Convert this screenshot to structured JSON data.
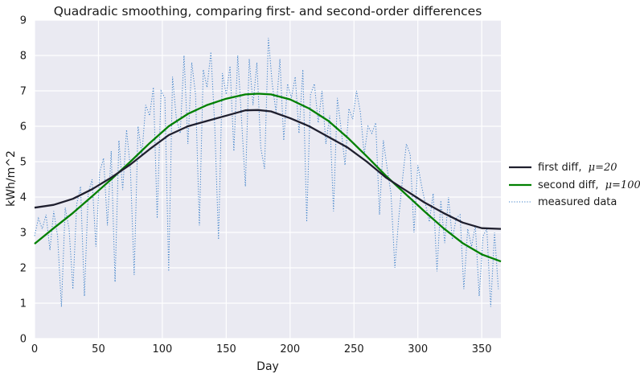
{
  "chart_data": {
    "type": "line",
    "title": "Quadradic smoothing, comparing first- and second-order differences",
    "xlabel": "Day",
    "ylabel": "kWh/m^2",
    "xlim": [
      0,
      365
    ],
    "ylim": [
      0,
      9
    ],
    "x_ticks": [
      0,
      50,
      100,
      150,
      200,
      250,
      300,
      350
    ],
    "y_ticks": [
      0,
      1,
      2,
      3,
      4,
      5,
      6,
      7,
      8,
      9
    ],
    "grid": true,
    "legend_placement": "right, outside",
    "series": [
      {
        "name": "first diff,",
        "name_math": "μ=20",
        "color": "#1f1f2e",
        "style": "solid",
        "x": [
          0,
          15,
          30,
          45,
          60,
          75,
          90,
          105,
          120,
          135,
          150,
          165,
          175,
          185,
          200,
          215,
          230,
          245,
          260,
          275,
          290,
          305,
          320,
          335,
          350,
          365
        ],
        "y": [
          3.7,
          3.78,
          3.95,
          4.22,
          4.55,
          4.92,
          5.35,
          5.75,
          6.0,
          6.15,
          6.3,
          6.45,
          6.46,
          6.42,
          6.23,
          6.0,
          5.7,
          5.4,
          5.0,
          4.55,
          4.2,
          3.85,
          3.55,
          3.28,
          3.12,
          3.1
        ]
      },
      {
        "name": "second diff,",
        "name_math": "μ=100",
        "color": "#008000",
        "style": "solid",
        "x": [
          0,
          15,
          30,
          45,
          60,
          75,
          90,
          105,
          120,
          135,
          150,
          165,
          175,
          185,
          200,
          215,
          230,
          245,
          260,
          275,
          290,
          305,
          320,
          335,
          350,
          365
        ],
        "y": [
          2.68,
          3.12,
          3.55,
          4.02,
          4.5,
          5.0,
          5.52,
          6.0,
          6.35,
          6.6,
          6.78,
          6.9,
          6.92,
          6.9,
          6.76,
          6.5,
          6.15,
          5.68,
          5.15,
          4.6,
          4.1,
          3.6,
          3.12,
          2.7,
          2.38,
          2.18
        ]
      },
      {
        "name": "measured data",
        "color": "#3a7fc8",
        "style": "dotted",
        "x": [
          0,
          3,
          6,
          9,
          12,
          15,
          18,
          21,
          24,
          27,
          30,
          33,
          36,
          39,
          42,
          45,
          48,
          51,
          54,
          57,
          60,
          63,
          66,
          69,
          72,
          75,
          78,
          81,
          84,
          87,
          90,
          93,
          96,
          99,
          102,
          105,
          108,
          111,
          114,
          117,
          120,
          123,
          126,
          129,
          132,
          135,
          138,
          141,
          144,
          147,
          150,
          153,
          156,
          159,
          162,
          165,
          168,
          171,
          174,
          177,
          180,
          183,
          186,
          189,
          192,
          195,
          198,
          201,
          204,
          207,
          210,
          213,
          216,
          219,
          222,
          225,
          228,
          231,
          234,
          237,
          240,
          243,
          246,
          249,
          252,
          255,
          258,
          261,
          264,
          267,
          270,
          273,
          276,
          279,
          282,
          285,
          288,
          291,
          294,
          297,
          300,
          303,
          306,
          309,
          312,
          315,
          318,
          321,
          324,
          327,
          330,
          333,
          336,
          339,
          342,
          345,
          348,
          351,
          354,
          357,
          360,
          363
        ],
        "y": [
          2.9,
          3.4,
          3.1,
          3.5,
          2.5,
          3.6,
          2.9,
          0.9,
          3.7,
          3.1,
          1.4,
          3.8,
          4.3,
          1.2,
          4.1,
          4.5,
          2.6,
          4.7,
          5.1,
          3.2,
          5.3,
          1.6,
          5.6,
          4.2,
          5.9,
          4.8,
          1.8,
          6.0,
          5.2,
          6.6,
          6.3,
          7.1,
          3.4,
          7.0,
          6.8,
          1.9,
          7.4,
          6.2,
          5.8,
          8.0,
          5.5,
          7.8,
          6.9,
          3.2,
          7.6,
          7.1,
          8.1,
          6.0,
          2.8,
          7.5,
          6.9,
          7.7,
          5.3,
          8.0,
          6.2,
          4.3,
          7.9,
          6.6,
          7.8,
          5.4,
          4.8,
          8.5,
          7.2,
          6.4,
          7.9,
          5.6,
          7.2,
          6.8,
          7.4,
          5.8,
          7.6,
          3.3,
          6.9,
          7.2,
          6.1,
          7.0,
          5.5,
          6.3,
          3.6,
          6.8,
          5.9,
          4.9,
          6.5,
          6.2,
          7.0,
          6.4,
          5.2,
          6.0,
          5.8,
          6.1,
          3.5,
          5.6,
          4.8,
          4.1,
          2.0,
          3.4,
          4.5,
          5.5,
          5.2,
          3.0,
          4.9,
          4.3,
          3.8,
          3.3,
          4.1,
          1.9,
          3.9,
          2.7,
          4.0,
          2.8,
          3.4,
          3.5,
          1.4,
          3.1,
          2.6,
          3.2,
          1.2,
          2.9,
          3.1,
          0.9,
          3.0,
          1.4
        ]
      }
    ]
  }
}
